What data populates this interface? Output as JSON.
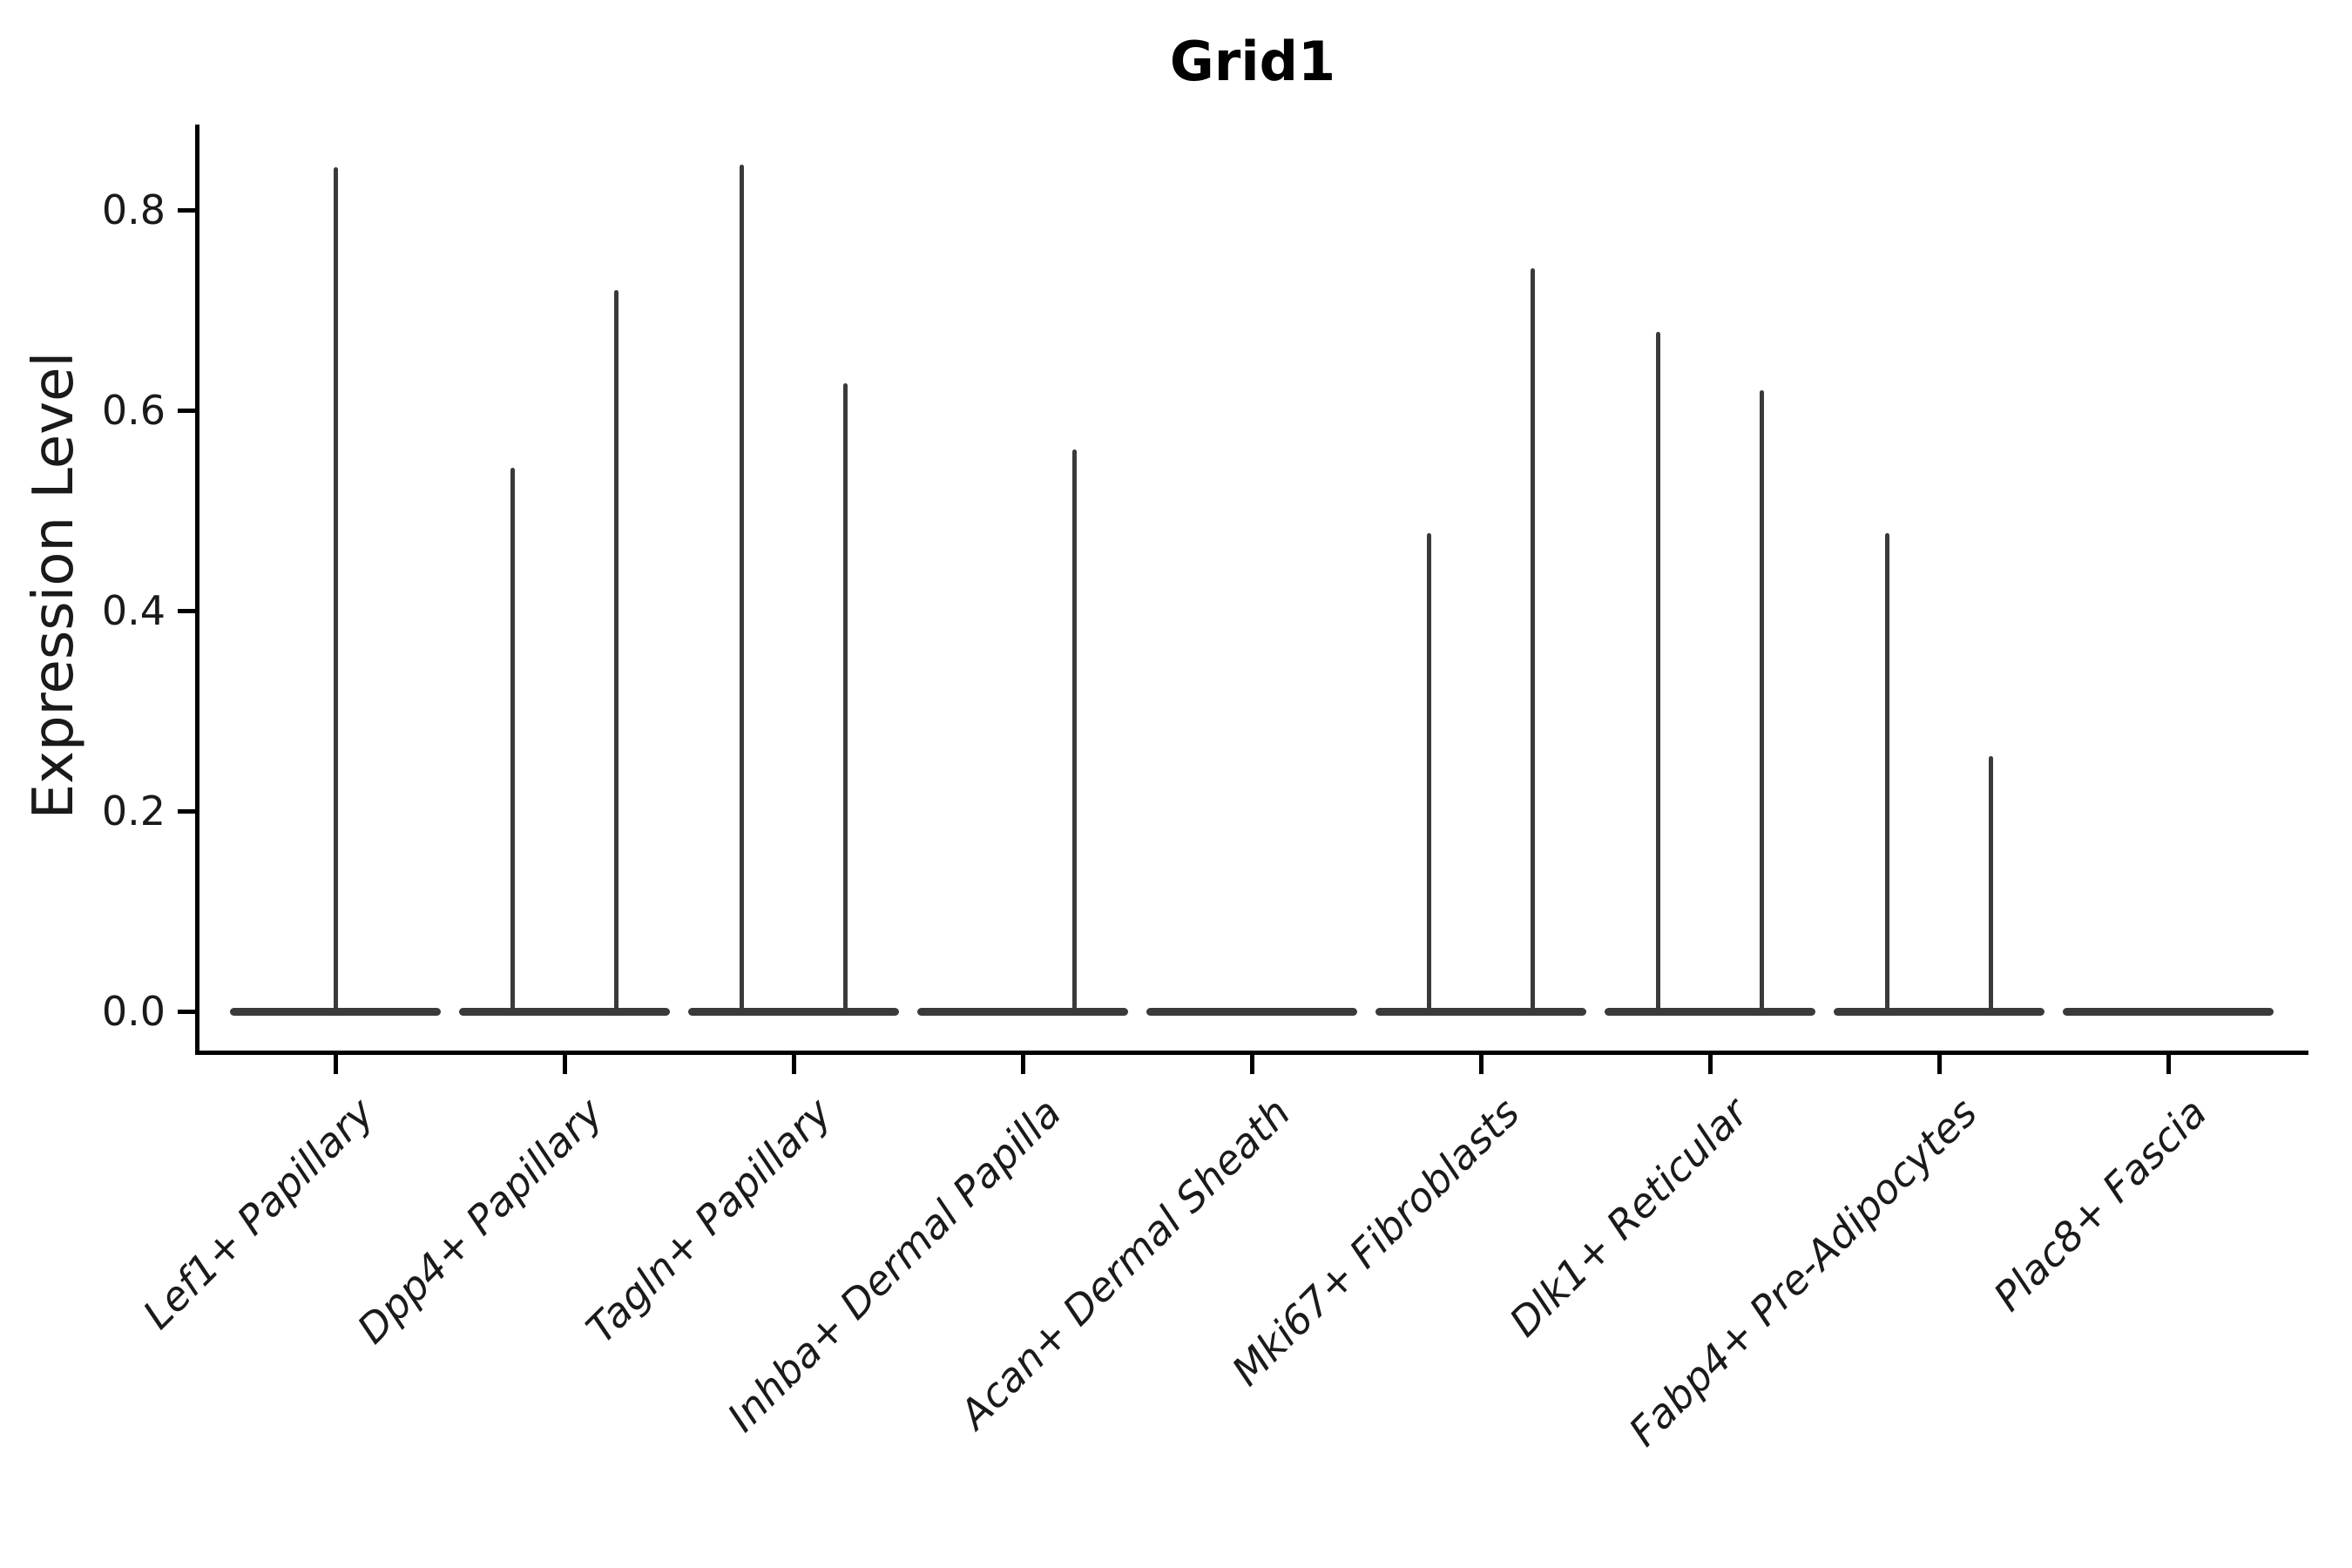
{
  "figure": {
    "title": "Grid1",
    "y_axis": {
      "label": "Expression Level",
      "tick_labels": [
        "0.0",
        "0.2",
        "0.4",
        "0.6",
        "0.8"
      ]
    },
    "x_axis": {
      "tick_labels": [
        "Lef1+ Papillary",
        "Dpp4+ Papillary",
        "Tagln+ Papillary",
        "Inhba+ Dermal Papilla",
        "Acan+ Dermal Sheath",
        "Mki67+ Fibroblasts",
        "Dlk1+ Reticular",
        "Fabp4+ Pre-Adipocytes",
        "Plac8+ Fascia"
      ]
    }
  },
  "chart_data": {
    "type": "violin",
    "title": "Grid1",
    "xlabel": "",
    "ylabel": "Expression Level",
    "ylim": [
      -0.04,
      0.885
    ],
    "yticks": [
      0.0,
      0.2,
      0.4,
      0.6,
      0.8
    ],
    "ytick_labels": [
      "0.0",
      "0.2",
      "0.4",
      "0.6",
      "0.8"
    ],
    "grid": false,
    "legend": null,
    "violin_color": "#3a3a3a",
    "axis_color": "#000000",
    "text_color": "#1a1a1a",
    "description": "Each category shows a violin flattened at expression 0 with thin vertical density spikes reaching the maximum expression value; offsets are in category-width units relative to the tick center.",
    "categories": [
      "Lef1+ Papillary",
      "Dpp4+ Papillary",
      "Tagln+ Papillary",
      "Inhba+ Dermal Papilla",
      "Acan+ Dermal Sheath",
      "Mki67+ Fibroblasts",
      "Dlk1+ Reticular",
      "Fabp4+ Pre-Adipocytes",
      "Plac8+ Fascia"
    ],
    "series": [
      {
        "category": "Lef1+ Papillary",
        "body_width": 0.92,
        "floor_value": 0.0,
        "spikes": [
          {
            "offset": 0.0,
            "max": 0.843
          }
        ]
      },
      {
        "category": "Dpp4+ Papillary",
        "body_width": 0.92,
        "floor_value": 0.0,
        "spikes": [
          {
            "offset": -0.228,
            "max": 0.543
          },
          {
            "offset": 0.228,
            "max": 0.72
          }
        ]
      },
      {
        "category": "Tagln+ Papillary",
        "body_width": 0.92,
        "floor_value": 0.0,
        "spikes": [
          {
            "offset": -0.228,
            "max": 0.845
          },
          {
            "offset": 0.228,
            "max": 0.627
          }
        ]
      },
      {
        "category": "Inhba+ Dermal Papilla",
        "body_width": 0.92,
        "floor_value": 0.0,
        "spikes": [
          {
            "offset": 0.228,
            "max": 0.561
          }
        ]
      },
      {
        "category": "Acan+ Dermal Sheath",
        "body_width": 0.92,
        "floor_value": 0.0,
        "spikes": []
      },
      {
        "category": "Mki67+ Fibroblasts",
        "body_width": 0.92,
        "floor_value": 0.0,
        "spikes": [
          {
            "offset": -0.228,
            "max": 0.477
          },
          {
            "offset": 0.228,
            "max": 0.742
          }
        ]
      },
      {
        "category": "Dlk1+ Reticular",
        "body_width": 0.92,
        "floor_value": 0.0,
        "spikes": [
          {
            "offset": -0.228,
            "max": 0.678
          },
          {
            "offset": 0.228,
            "max": 0.62
          }
        ]
      },
      {
        "category": "Fabp4+ Pre-Adipocytes",
        "body_width": 0.92,
        "floor_value": 0.0,
        "spikes": [
          {
            "offset": -0.228,
            "max": 0.477
          },
          {
            "offset": 0.228,
            "max": 0.255
          }
        ]
      },
      {
        "category": "Plac8+ Fascia",
        "body_width": 0.92,
        "floor_value": 0.0,
        "spikes": []
      }
    ]
  }
}
